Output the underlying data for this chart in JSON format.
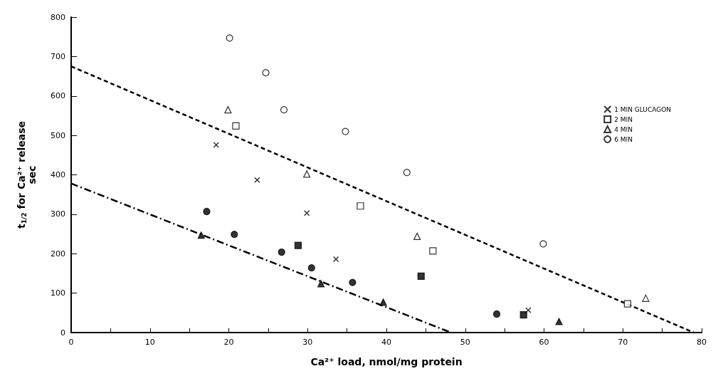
{
  "chart_data": {
    "type": "scatter",
    "xlabel": "Ca²⁺ load, nmol/mg protein",
    "ylabel": "t$_{1/2}$ for Ca²⁺ release\nsec",
    "xlim": [
      0,
      80
    ],
    "xticks": [
      0,
      {
        "value": 5,
        "label": null
      },
      10,
      {
        "value": 15,
        "label": null
      },
      20,
      {
        "value": 25,
        "label": null
      },
      30,
      {
        "value": 35,
        "label": null
      },
      40,
      {
        "value": 45,
        "label": null
      },
      50,
      {
        "value": 55,
        "label": null
      },
      60,
      {
        "value": 65,
        "label": null
      },
      70,
      {
        "value": 75,
        "label": null
      },
      80
    ],
    "ylim": [
      0,
      800
    ],
    "yticks": [
      0,
      100,
      200,
      300,
      400,
      500,
      600,
      700,
      800
    ],
    "grid": false,
    "legend": "top right",
    "series": [
      {
        "name": "1 MIN GLUCAGON",
        "color": "#000000",
        "marker": "cross",
        "x": [
          18.4,
          23.6,
          29.9,
          33.6,
          58.0
        ],
        "values": [
          476,
          387,
          303,
          186,
          57
        ]
      },
      {
        "name": "2 MIN",
        "color": "#000000",
        "marker": "square",
        "x": [
          20.9,
          36.7,
          45.9,
          70.6
        ],
        "values": [
          524,
          321,
          207,
          73
        ]
      },
      {
        "name": "4 MIN",
        "color": "#000000",
        "marker": "triangle",
        "x": [
          19.9,
          29.9,
          43.9,
          72.9
        ],
        "values": [
          565,
          402,
          244,
          87
        ]
      },
      {
        "name": "6 MIN",
        "color": "#000000",
        "marker": "circle",
        "x": [
          20.1,
          24.7,
          27.0,
          34.8,
          42.6,
          59.9
        ],
        "values": [
          747,
          659,
          565,
          510,
          406,
          225
        ]
      },
      {
        "color": "#000000",
        "marker": "circle",
        "x": [
          17.2,
          20.7,
          26.7,
          30.5,
          35.7,
          54.0
        ],
        "values": [
          307,
          249,
          204,
          164,
          127,
          47
        ]
      },
      {
        "color": "#000000",
        "marker": "square",
        "x": [
          28.8,
          44.4,
          57.4
        ],
        "values": [
          221,
          143,
          45
        ]
      },
      {
        "color": "#000000",
        "marker": "triangle",
        "x": [
          16.5,
          31.7,
          39.6,
          61.9
        ],
        "values": [
          247,
          124,
          77,
          28
        ]
      },
      {
        "type": "line",
        "color": "#000000",
        "line_style": "dashed",
        "marker": "none",
        "x": [
          0,
          79
        ],
        "values": [
          675,
          0
        ]
      },
      {
        "type": "line",
        "color": "#000000",
        "line_style": "dashdot",
        "marker": "none",
        "x": [
          0,
          48.2
        ],
        "values": [
          378,
          0
        ]
      }
    ]
  }
}
